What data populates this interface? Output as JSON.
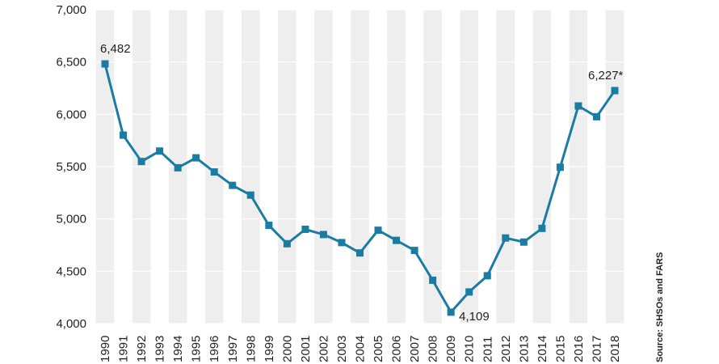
{
  "chart_data": {
    "type": "line",
    "x": [
      "1990",
      "1991",
      "1992",
      "1993",
      "1994",
      "1995",
      "1996",
      "1997",
      "1998",
      "1999",
      "2000",
      "2001",
      "2002",
      "2003",
      "2004",
      "2005",
      "2006",
      "2007",
      "2008",
      "2009",
      "2010",
      "2011",
      "2012",
      "2013",
      "2014",
      "2015",
      "2016",
      "2017",
      "2018"
    ],
    "series": [
      {
        "values": [
          6482,
          5801,
          5549,
          5649,
          5489,
          5584,
          5449,
          5321,
          5228,
          4939,
          4763,
          4901,
          4851,
          4774,
          4675,
          4892,
          4795,
          4699,
          4414,
          4109,
          4302,
          4457,
          4818,
          4779,
          4910,
          5494,
          6080,
          5977,
          6227
        ]
      }
    ],
    "ylim": [
      4000,
      7000
    ],
    "yticks": [
      "4,000",
      "4,500",
      "5,000",
      "5,500",
      "6,000",
      "6,500",
      "7,000"
    ],
    "annotations": [
      {
        "index": 0,
        "text": "6,482"
      },
      {
        "index": 19,
        "text": "4,109"
      },
      {
        "index": 28,
        "text": "6,227*"
      }
    ],
    "source": "Source: SHSOs and FARS",
    "colors": {
      "line": "#1a7ca3",
      "band": "#eeeeee",
      "grid": "#ffffff"
    }
  }
}
